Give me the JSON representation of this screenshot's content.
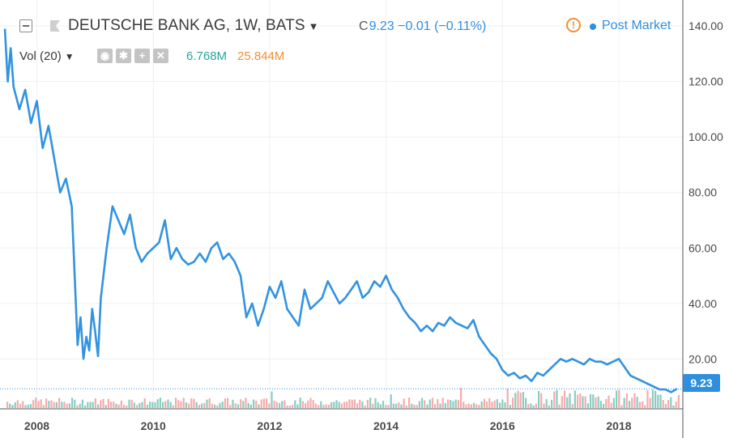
{
  "header": {
    "title": "DEUTSCHE BANK AG, 1W, BATS",
    "quote_prefix": "C",
    "last": "9.23",
    "change": "−0.01",
    "change_pct": "(−0.11%)",
    "post_market": "Post Market",
    "warning_glyph": "!"
  },
  "volume_row": {
    "label": "Vol (20)",
    "value_1": "6.768M",
    "value_2": "25.844M"
  },
  "icons": [
    "collapse-icon",
    "flag-icon",
    "dropdown-chevron-icon",
    "warning-icon",
    "eye-icon",
    "settings-icon",
    "add-icon",
    "close-icon"
  ],
  "colors": {
    "line": "#3293e0",
    "up_volume": "#7cc8b9",
    "down_volume": "#f3a3a3",
    "accent": "#2e8fe0",
    "warning": "#f29032",
    "vol_value_1": "#26a69a",
    "vol_value_2": "#f29032"
  },
  "chart_data": {
    "type": "line",
    "title": "DEUTSCHE BANK AG, 1W, BATS",
    "xlabel": "",
    "ylabel": "",
    "x_ticks": [
      "2008",
      "2010",
      "2012",
      "2014",
      "2016",
      "2018"
    ],
    "y_ticks": [
      "20.00",
      "40.00",
      "60.00",
      "80.00",
      "100.00",
      "120.00",
      "140.00"
    ],
    "xlim": [
      2007.45,
      2019.1
    ],
    "ylim": [
      2,
      145
    ],
    "last_price_label": "9.23",
    "last_price": 9.23,
    "grid": true,
    "series": [
      {
        "x": [
          2007.45,
          2007.5,
          2007.55,
          2007.6,
          2007.7,
          2007.8,
          2007.9,
          2008.0,
          2008.1,
          2008.2,
          2008.3,
          2008.4,
          2008.5,
          2008.6,
          2008.7,
          2008.75,
          2008.8,
          2008.85,
          2008.9,
          2008.95,
          2009.0,
          2009.05,
          2009.1,
          2009.2,
          2009.3,
          2009.4,
          2009.5,
          2009.6,
          2009.7,
          2009.8,
          2009.9,
          2010.0,
          2010.1,
          2010.2,
          2010.3,
          2010.4,
          2010.5,
          2010.6,
          2010.7,
          2010.8,
          2010.9,
          2011.0,
          2011.1,
          2011.2,
          2011.3,
          2011.4,
          2011.5,
          2011.6,
          2011.7,
          2011.8,
          2011.9,
          2012.0,
          2012.1,
          2012.2,
          2012.3,
          2012.4,
          2012.5,
          2012.6,
          2012.7,
          2012.8,
          2012.9,
          2013.0,
          2013.1,
          2013.2,
          2013.3,
          2013.4,
          2013.5,
          2013.6,
          2013.7,
          2013.8,
          2013.9,
          2014.0,
          2014.1,
          2014.2,
          2014.3,
          2014.4,
          2014.5,
          2014.6,
          2014.7,
          2014.8,
          2014.9,
          2015.0,
          2015.1,
          2015.2,
          2015.3,
          2015.4,
          2015.5,
          2015.6,
          2015.7,
          2015.8,
          2015.9,
          2016.0,
          2016.1,
          2016.2,
          2016.3,
          2016.4,
          2016.5,
          2016.6,
          2016.7,
          2016.8,
          2016.9,
          2017.0,
          2017.1,
          2017.2,
          2017.3,
          2017.4,
          2017.5,
          2017.6,
          2017.7,
          2017.8,
          2017.9,
          2018.0,
          2018.1,
          2018.2,
          2018.3,
          2018.4,
          2018.5,
          2018.6,
          2018.7,
          2018.8,
          2018.9,
          2019.0
        ],
        "y": [
          139,
          120,
          132,
          118,
          110,
          117,
          105,
          113,
          96,
          104,
          92,
          80,
          85,
          75,
          25,
          35,
          20,
          28,
          23,
          38,
          30,
          21,
          42,
          60,
          75,
          70,
          65,
          72,
          60,
          55,
          58,
          60,
          62,
          70,
          56,
          60,
          56,
          54,
          55,
          58,
          55,
          60,
          62,
          56,
          58,
          55,
          50,
          35,
          40,
          32,
          38,
          46,
          42,
          48,
          38,
          35,
          32,
          45,
          38,
          40,
          42,
          48,
          44,
          40,
          42,
          45,
          48,
          42,
          44,
          48,
          46,
          50,
          45,
          42,
          38,
          35,
          33,
          30,
          32,
          30,
          33,
          32,
          35,
          33,
          32,
          31,
          34,
          28,
          25,
          22,
          20,
          16,
          14,
          15,
          13,
          14,
          12,
          15,
          14,
          16,
          18,
          20,
          19,
          20,
          19,
          18,
          20,
          19,
          19,
          18,
          19,
          20,
          17,
          14,
          13,
          12,
          11,
          10,
          9,
          9,
          8,
          9.23
        ]
      }
    ]
  }
}
